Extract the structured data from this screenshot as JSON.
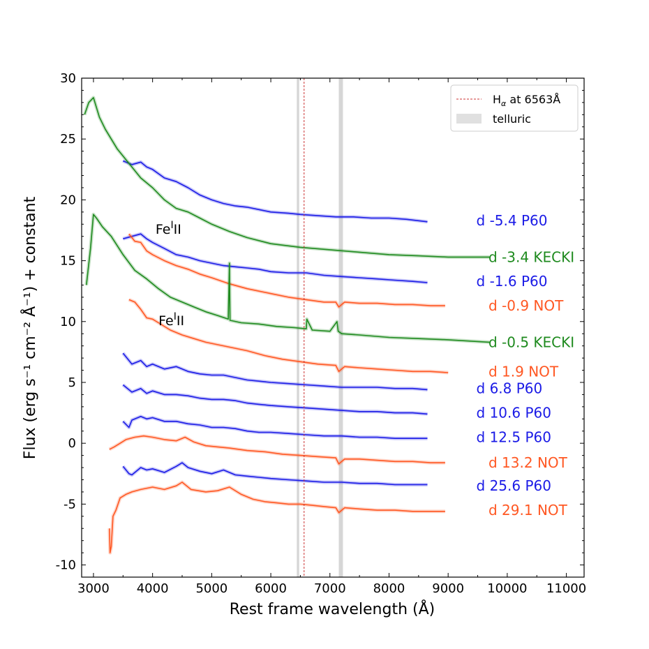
{
  "chart_data": {
    "type": "line",
    "xlabel": "Rest frame wavelength (Å)",
    "ylabel": "Flux (erg s⁻¹ cm⁻² Å⁻¹) + constant",
    "xlim": [
      2800,
      11300
    ],
    "ylim": [
      -11,
      30
    ],
    "xticks": [
      3000,
      4000,
      5000,
      6000,
      7000,
      8000,
      9000,
      10000,
      11000
    ],
    "yticks": [
      -10,
      -5,
      0,
      5,
      10,
      15,
      20,
      25,
      30
    ],
    "colors": {
      "P60": "#1a1ae6",
      "NOT": "#ff5722",
      "KECKI": "#1e8a1e",
      "halpha": "#cc3333",
      "telluric": "#c8c8c8"
    },
    "legend": {
      "position": "upper right",
      "entries": [
        {
          "label": "H",
          "sub": "α",
          "suffix": " at 6563Å",
          "style": "dashed-line"
        },
        {
          "label": "telluric",
          "style": "gray-patch"
        }
      ]
    },
    "halpha_line": 6563,
    "telluric_bands": [
      [
        6440,
        6480
      ],
      [
        7150,
        7220
      ]
    ],
    "annotations": [
      {
        "text": "Fe",
        "sup": "I",
        "tail": "II",
        "x": 4050,
        "y": 17.6
      },
      {
        "text": "Fe",
        "sup": "I",
        "tail": "II",
        "x": 4100,
        "y": 10.1
      }
    ],
    "series": [
      {
        "name": "d -5.4 P60",
        "color_key": "P60",
        "label_y": 18.3,
        "x": [
          3500,
          3650,
          3800,
          3900,
          4000,
          4200,
          4400,
          4600,
          4800,
          5000,
          5200,
          5400,
          5600,
          5800,
          6000,
          6300,
          6500,
          6800,
          7100,
          7400,
          7700,
          8000,
          8300,
          8650
        ],
        "y": [
          23.2,
          22.9,
          23.1,
          22.7,
          22.5,
          21.8,
          21.5,
          21.0,
          20.4,
          20.0,
          19.7,
          19.5,
          19.4,
          19.2,
          19.0,
          18.9,
          18.8,
          18.7,
          18.6,
          18.6,
          18.5,
          18.5,
          18.4,
          18.2
        ]
      },
      {
        "name": "d -3.4 KECKI",
        "color_key": "KECKI",
        "label_y": 15.3,
        "x": [
          2850,
          2920,
          3000,
          3100,
          3200,
          3400,
          3600,
          3800,
          4000,
          4200,
          4400,
          4600,
          4800,
          5000,
          5300,
          5600,
          6000,
          6500,
          7000,
          7500,
          8000,
          8500,
          9000,
          9700
        ],
        "y": [
          27.0,
          28.0,
          28.4,
          26.8,
          25.8,
          24.2,
          23.0,
          21.8,
          21.0,
          20.0,
          19.3,
          19.0,
          18.5,
          18.0,
          17.4,
          16.9,
          16.4,
          16.1,
          15.9,
          15.7,
          15.5,
          15.4,
          15.3,
          15.3
        ]
      },
      {
        "name": "d -1.6 P60",
        "color_key": "P60",
        "label_y": 13.3,
        "x": [
          3500,
          3650,
          3800,
          3900,
          4000,
          4200,
          4400,
          4600,
          4800,
          5000,
          5200,
          5400,
          5600,
          5800,
          6000,
          6300,
          6600,
          6900,
          7200,
          7500,
          7800,
          8100,
          8400,
          8650
        ],
        "y": [
          16.8,
          17.0,
          17.2,
          16.8,
          16.5,
          16.0,
          15.5,
          15.3,
          15.0,
          14.8,
          14.6,
          14.5,
          14.4,
          14.3,
          14.1,
          14.0,
          14.0,
          13.8,
          13.7,
          13.6,
          13.5,
          13.4,
          13.3,
          13.2
        ]
      },
      {
        "name": "d -0.9 NOT",
        "color_key": "NOT",
        "label_y": 11.3,
        "x": [
          3600,
          3700,
          3800,
          3900,
          4000,
          4200,
          4400,
          4600,
          4800,
          5000,
          5300,
          5600,
          6000,
          6300,
          6600,
          6900,
          7100,
          7150,
          7250,
          7500,
          7800,
          8100,
          8400,
          8700,
          8950
        ],
        "y": [
          17.2,
          16.6,
          16.5,
          15.8,
          15.5,
          15.0,
          14.6,
          14.3,
          13.9,
          13.6,
          13.1,
          12.7,
          12.3,
          12.0,
          11.8,
          11.6,
          11.6,
          11.2,
          11.6,
          11.5,
          11.5,
          11.4,
          11.4,
          11.3,
          11.3
        ]
      },
      {
        "name": "d -0.5 KECKI",
        "color_key": "KECKI",
        "label_y": 8.3,
        "x": [
          2880,
          2950,
          3000,
          3050,
          3150,
          3300,
          3500,
          3700,
          3900,
          4100,
          4300,
          4500,
          4700,
          4900,
          5100,
          5280,
          5300,
          5310,
          5500,
          5800,
          6100,
          6400,
          6600,
          6610,
          6700,
          7000,
          7120,
          7140,
          7200,
          7500,
          8000,
          8500,
          9000,
          9700
        ],
        "y": [
          13.0,
          16.0,
          18.8,
          18.5,
          17.8,
          17.0,
          15.5,
          14.2,
          13.5,
          12.7,
          12.0,
          11.6,
          11.2,
          10.8,
          10.5,
          10.2,
          14.8,
          10.1,
          9.9,
          9.8,
          9.6,
          9.5,
          9.4,
          10.2,
          9.3,
          9.2,
          10.0,
          9.2,
          9.0,
          8.9,
          8.7,
          8.6,
          8.5,
          8.3
        ]
      },
      {
        "name": "d 1.9 NOT",
        "color_key": "NOT",
        "label_y": 5.9,
        "x": [
          3600,
          3700,
          3800,
          3900,
          4000,
          4100,
          4300,
          4500,
          4700,
          4900,
          5100,
          5300,
          5600,
          5900,
          6200,
          6500,
          6800,
          7100,
          7150,
          7250,
          7500,
          7800,
          8100,
          8400,
          8700,
          9000
        ],
        "y": [
          11.8,
          11.6,
          11.0,
          10.3,
          10.2,
          9.9,
          9.3,
          8.9,
          8.6,
          8.3,
          8.1,
          7.9,
          7.6,
          7.2,
          6.9,
          6.7,
          6.5,
          6.4,
          5.9,
          6.3,
          6.2,
          6.1,
          6.0,
          5.9,
          5.9,
          5.8
        ]
      },
      {
        "name": "d 6.8 P60",
        "color_key": "P60",
        "label_y": 4.5,
        "x": [
          3500,
          3650,
          3800,
          3900,
          4000,
          4200,
          4400,
          4600,
          4800,
          5000,
          5200,
          5400,
          5600,
          5800,
          6000,
          6300,
          6600,
          6900,
          7200,
          7500,
          7800,
          8100,
          8400,
          8650
        ],
        "y": [
          7.4,
          6.5,
          6.8,
          6.3,
          6.5,
          6.1,
          6.3,
          5.9,
          5.7,
          5.6,
          5.6,
          5.4,
          5.2,
          5.1,
          5.0,
          4.9,
          4.8,
          4.7,
          4.6,
          4.6,
          4.6,
          4.5,
          4.5,
          4.4
        ]
      },
      {
        "name": "d 10.6 P60",
        "color_key": "P60",
        "label_y": 2.5,
        "x": [
          3500,
          3650,
          3800,
          3900,
          4000,
          4200,
          4400,
          4600,
          4800,
          5000,
          5200,
          5400,
          5600,
          5800,
          6000,
          6300,
          6600,
          6900,
          7200,
          7500,
          7800,
          8100,
          8400,
          8650
        ],
        "y": [
          4.8,
          4.2,
          4.5,
          4.1,
          4.3,
          4.0,
          4.0,
          3.9,
          3.7,
          3.6,
          3.6,
          3.5,
          3.3,
          3.2,
          3.1,
          3.0,
          2.9,
          2.8,
          2.7,
          2.6,
          2.6,
          2.5,
          2.5,
          2.4
        ]
      },
      {
        "name": "d 12.5 P60",
        "color_key": "P60",
        "label_y": 0.5,
        "x": [
          3500,
          3600,
          3650,
          3800,
          3900,
          4000,
          4200,
          4400,
          4600,
          4800,
          5000,
          5200,
          5400,
          5600,
          5800,
          6000,
          6300,
          6600,
          6900,
          7200,
          7500,
          7800,
          8100,
          8400,
          8650
        ],
        "y": [
          1.8,
          1.3,
          1.9,
          2.2,
          2.0,
          2.1,
          1.8,
          1.8,
          1.6,
          1.5,
          1.3,
          1.3,
          1.2,
          1.0,
          0.9,
          0.9,
          0.8,
          0.7,
          0.6,
          0.6,
          0.5,
          0.5,
          0.4,
          0.4,
          0.4
        ]
      },
      {
        "name": "d 13.2 NOT",
        "color_key": "NOT",
        "label_y": -1.6,
        "x": [
          3270,
          3350,
          3450,
          3550,
          3700,
          3850,
          4000,
          4200,
          4400,
          4550,
          4700,
          4900,
          5100,
          5300,
          5600,
          5900,
          6200,
          6500,
          6800,
          7100,
          7150,
          7250,
          7500,
          7800,
          8100,
          8400,
          8700,
          8950
        ],
        "y": [
          -0.5,
          -0.3,
          0.0,
          0.3,
          0.5,
          0.6,
          0.5,
          0.3,
          0.2,
          0.5,
          0.1,
          -0.2,
          -0.3,
          -0.4,
          -0.6,
          -0.7,
          -0.9,
          -1.0,
          -1.1,
          -1.2,
          -1.7,
          -1.3,
          -1.3,
          -1.4,
          -1.5,
          -1.5,
          -1.6,
          -1.6
        ]
      },
      {
        "name": "d 25.6 P60",
        "color_key": "P60",
        "label_y": -3.5,
        "x": [
          3500,
          3600,
          3650,
          3800,
          3900,
          4000,
          4200,
          4400,
          4500,
          4600,
          4800,
          5000,
          5200,
          5400,
          5600,
          5800,
          6000,
          6300,
          6600,
          6900,
          7200,
          7500,
          7800,
          8100,
          8400,
          8650
        ],
        "y": [
          -1.9,
          -2.5,
          -2.6,
          -2.0,
          -2.2,
          -2.1,
          -2.4,
          -1.9,
          -1.6,
          -2.0,
          -2.3,
          -2.5,
          -2.2,
          -2.6,
          -2.7,
          -2.8,
          -2.9,
          -3.0,
          -3.1,
          -3.2,
          -3.2,
          -3.3,
          -3.3,
          -3.4,
          -3.4,
          -3.4
        ]
      },
      {
        "name": "d 29.1 NOT",
        "color_key": "NOT",
        "label_y": -5.5,
        "x": [
          3270,
          3280,
          3300,
          3330,
          3380,
          3450,
          3550,
          3650,
          3800,
          4000,
          4200,
          4400,
          4500,
          4650,
          4900,
          5100,
          5300,
          5500,
          5700,
          5900,
          6100,
          6300,
          6500,
          6700,
          6900,
          7100,
          7150,
          7250,
          7500,
          7800,
          8100,
          8400,
          8700,
          8950
        ],
        "y": [
          -7.0,
          -9.0,
          -8.5,
          -6.0,
          -5.5,
          -4.5,
          -4.2,
          -4.0,
          -3.8,
          -3.6,
          -3.8,
          -3.5,
          -3.2,
          -3.8,
          -4.0,
          -3.9,
          -3.6,
          -4.2,
          -4.6,
          -4.8,
          -4.9,
          -5.0,
          -5.0,
          -5.1,
          -5.2,
          -5.3,
          -5.7,
          -5.3,
          -5.4,
          -5.5,
          -5.5,
          -5.6,
          -5.6,
          -5.6
        ]
      }
    ]
  }
}
